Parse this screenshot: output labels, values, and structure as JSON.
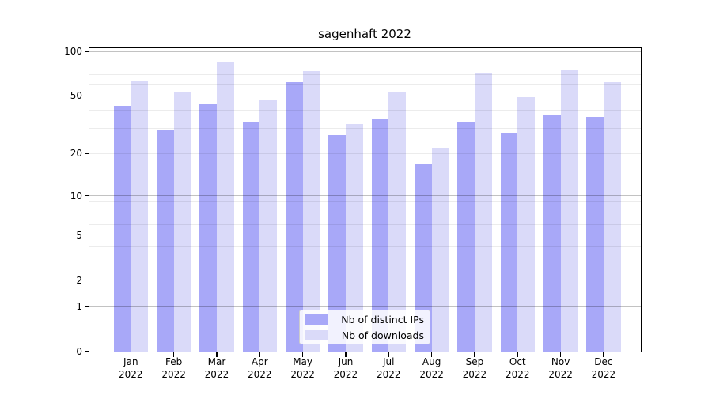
{
  "chart_data": {
    "type": "bar",
    "title": "sagenhaft 2022",
    "categories": [
      "Jan",
      "Feb",
      "Mar",
      "Apr",
      "May",
      "Jun",
      "Jul",
      "Aug",
      "Sep",
      "Oct",
      "Nov",
      "Dec"
    ],
    "category_sublabel": "2022",
    "series": [
      {
        "name": "Nb of distinct IPs",
        "color": "#a8a8f8",
        "values": [
          43,
          29,
          44,
          33,
          62,
          27,
          35,
          17,
          33,
          28,
          37,
          36
        ]
      },
      {
        "name": "Nb of downloads",
        "color": "#dadaf9",
        "values": [
          63,
          53,
          85,
          47,
          74,
          32,
          53,
          22,
          71,
          49,
          75,
          62
        ]
      }
    ],
    "xlabel": "",
    "ylabel": "",
    "yscale": "symlog",
    "ylim": [
      0,
      105
    ],
    "yticks": [
      0,
      1,
      2,
      5,
      10,
      20,
      50,
      100
    ],
    "major_gridlines": [
      1,
      10,
      100
    ],
    "minor_gridlines": [
      2,
      3,
      4,
      6,
      7,
      8,
      9,
      20,
      30,
      40,
      60,
      70,
      80,
      90,
      5,
      50
    ],
    "grid": "on",
    "legend_position": "lower-center-inside",
    "axis_color": "#000000",
    "background_color": "#ffffff"
  }
}
